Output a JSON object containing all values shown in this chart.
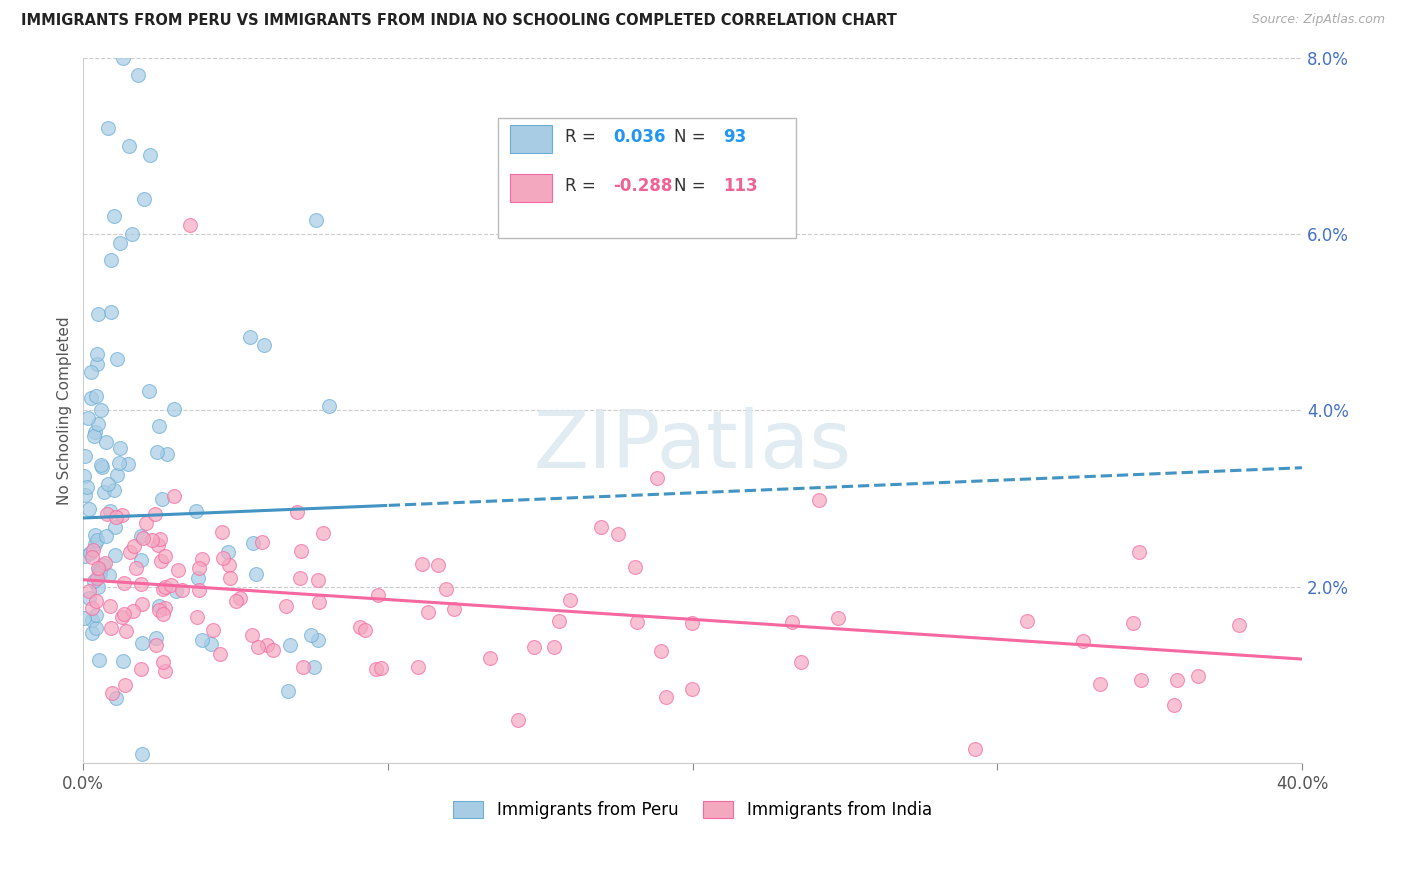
{
  "title": "IMMIGRANTS FROM PERU VS IMMIGRANTS FROM INDIA NO SCHOOLING COMPLETED CORRELATION CHART",
  "source": "Source: ZipAtlas.com",
  "ylabel": "No Schooling Completed",
  "legend_peru_label": "Immigrants from Peru",
  "legend_india_label": "Immigrants from India",
  "legend_peru_R": "0.036",
  "legend_peru_N": "93",
  "legend_india_R": "-0.288",
  "legend_india_N": "113",
  "color_peru_fill": "#a8cce4",
  "color_peru_edge": "#6baed6",
  "color_peru_line": "#4393c3",
  "color_india_fill": "#f4a8c0",
  "color_india_edge": "#f768a1",
  "color_india_line": "#f768a1",
  "color_R_peru": "#2196f3",
  "color_R_india": "#f06292",
  "color_N_peru": "#2196f3",
  "color_N_india": "#f06292",
  "watermark_text": "ZIPatlas",
  "xmin": 0.0,
  "xmax": 40.0,
  "ymin": 0.0,
  "ymax": 8.0,
  "peru_line_x0": 0.0,
  "peru_line_y0": 2.78,
  "peru_line_x1": 40.0,
  "peru_line_y1": 3.35,
  "peru_solid_end_x": 10.0,
  "india_line_x0": 0.0,
  "india_line_y0": 2.08,
  "india_line_x1": 40.0,
  "india_line_y1": 1.18,
  "grid_color": "#cccccc",
  "grid_yticks": [
    0,
    2,
    4,
    6,
    8
  ],
  "right_yticklabels": [
    "",
    "2.0%",
    "4.0%",
    "6.0%",
    "8.0%"
  ],
  "xtick_labels": [
    "0.0%",
    "",
    "",
    "",
    "40.0%"
  ],
  "xtick_positions": [
    0,
    10,
    20,
    30,
    40
  ]
}
